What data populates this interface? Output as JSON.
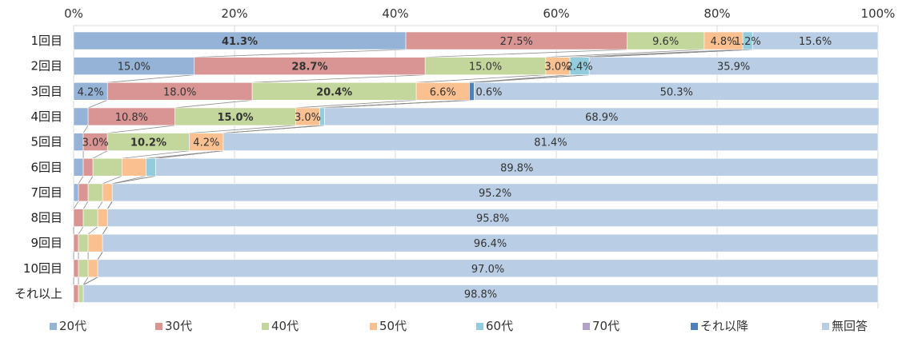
{
  "chart_data": {
    "type": "bar",
    "orientation": "horizontal",
    "stacked": "percent",
    "title": "",
    "xlabel": "",
    "ylabel": "",
    "xlim": [
      0,
      100
    ],
    "x_ticks": [
      "0%",
      "20%",
      "40%",
      "60%",
      "80%",
      "100%"
    ],
    "grid": true,
    "legend_position": "bottom",
    "categories": [
      "1回目",
      "2回目",
      "3回目",
      "4回目",
      "5回目",
      "6回目",
      "7回目",
      "8回目",
      "9回目",
      "10回目",
      "それ以上"
    ],
    "series": [
      {
        "name": "20代",
        "color": "#95b3d7",
        "values": [
          41.3,
          15.0,
          4.2,
          1.8,
          1.2,
          1.2,
          0.6,
          0.0,
          0.0,
          0.0,
          0.0
        ]
      },
      {
        "name": "30代",
        "color": "#d99594",
        "values": [
          27.5,
          28.7,
          18.0,
          10.8,
          3.0,
          1.2,
          1.2,
          1.2,
          0.6,
          0.6,
          0.6
        ]
      },
      {
        "name": "40代",
        "color": "#c3d69b",
        "values": [
          9.6,
          15.0,
          20.4,
          15.0,
          10.2,
          3.6,
          1.8,
          1.8,
          1.2,
          1.2,
          0.6
        ]
      },
      {
        "name": "50代",
        "color": "#fac090",
        "values": [
          4.8,
          3.0,
          6.6,
          3.0,
          4.2,
          3.0,
          1.2,
          1.2,
          1.8,
          1.2,
          0.0
        ]
      },
      {
        "name": "60代",
        "color": "#93cddd",
        "values": [
          1.2,
          2.4,
          0.0,
          0.6,
          0.0,
          1.2,
          0.0,
          0.0,
          0.0,
          0.0,
          0.0
        ]
      },
      {
        "name": "70代",
        "color": "#b3a2c7",
        "values": [
          0.0,
          0.0,
          0.0,
          0.0,
          0.0,
          0.0,
          0.0,
          0.0,
          0.0,
          0.0,
          0.0
        ]
      },
      {
        "name": "それ以降",
        "color": "#4f81bd",
        "values": [
          0.0,
          0.0,
          0.6,
          0.0,
          0.0,
          0.0,
          0.0,
          0.0,
          0.0,
          0.0,
          0.0
        ]
      },
      {
        "name": "無回答",
        "color": "#b9cde5",
        "values": [
          15.6,
          35.9,
          50.3,
          68.9,
          81.4,
          89.8,
          95.2,
          95.8,
          96.4,
          97.0,
          98.8
        ]
      }
    ],
    "data_labels": [
      {
        "row": 0,
        "series": 0,
        "text": "41.3%",
        "bold": true
      },
      {
        "row": 0,
        "series": 1,
        "text": "27.5%",
        "bold": false
      },
      {
        "row": 0,
        "series": 2,
        "text": "9.6%",
        "bold": false
      },
      {
        "row": 0,
        "series": 3,
        "text": "4.8%",
        "bold": false
      },
      {
        "row": 0,
        "series": 4,
        "text": "1.2%",
        "bold": false
      },
      {
        "row": 0,
        "series": 7,
        "text": "15.6%",
        "bold": false
      },
      {
        "row": 1,
        "series": 0,
        "text": "15.0%",
        "bold": false
      },
      {
        "row": 1,
        "series": 1,
        "text": "28.7%",
        "bold": true
      },
      {
        "row": 1,
        "series": 2,
        "text": "15.0%",
        "bold": false
      },
      {
        "row": 1,
        "series": 3,
        "text": "3.0%",
        "bold": false
      },
      {
        "row": 1,
        "series": 4,
        "text": "2.4%",
        "bold": false
      },
      {
        "row": 1,
        "series": 7,
        "text": "35.9%",
        "bold": false
      },
      {
        "row": 2,
        "series": 0,
        "text": "4.2%",
        "bold": false
      },
      {
        "row": 2,
        "series": 1,
        "text": "18.0%",
        "bold": false
      },
      {
        "row": 2,
        "series": 2,
        "text": "20.4%",
        "bold": true
      },
      {
        "row": 2,
        "series": 3,
        "text": "6.6%",
        "bold": false
      },
      {
        "row": 2,
        "series": 6,
        "text": "0.6%",
        "bold": false
      },
      {
        "row": 2,
        "series": 7,
        "text": "50.3%",
        "bold": false
      },
      {
        "row": 3,
        "series": 1,
        "text": "10.8%",
        "bold": false
      },
      {
        "row": 3,
        "series": 2,
        "text": "15.0%",
        "bold": true
      },
      {
        "row": 3,
        "series": 3,
        "text": "3.0%",
        "bold": false
      },
      {
        "row": 3,
        "series": 7,
        "text": "68.9%",
        "bold": false
      },
      {
        "row": 4,
        "series": 1,
        "text": "3.0%",
        "bold": false
      },
      {
        "row": 4,
        "series": 2,
        "text": "10.2%",
        "bold": true
      },
      {
        "row": 4,
        "series": 3,
        "text": "4.2%",
        "bold": false
      },
      {
        "row": 4,
        "series": 7,
        "text": "81.4%",
        "bold": false
      },
      {
        "row": 5,
        "series": 7,
        "text": "89.8%",
        "bold": false
      },
      {
        "row": 6,
        "series": 7,
        "text": "95.2%",
        "bold": false
      },
      {
        "row": 7,
        "series": 7,
        "text": "95.8%",
        "bold": false
      },
      {
        "row": 8,
        "series": 7,
        "text": "96.4%",
        "bold": false
      },
      {
        "row": 9,
        "series": 7,
        "text": "97.0%",
        "bold": false
      },
      {
        "row": 10,
        "series": 7,
        "text": "98.8%",
        "bold": false
      }
    ]
  }
}
